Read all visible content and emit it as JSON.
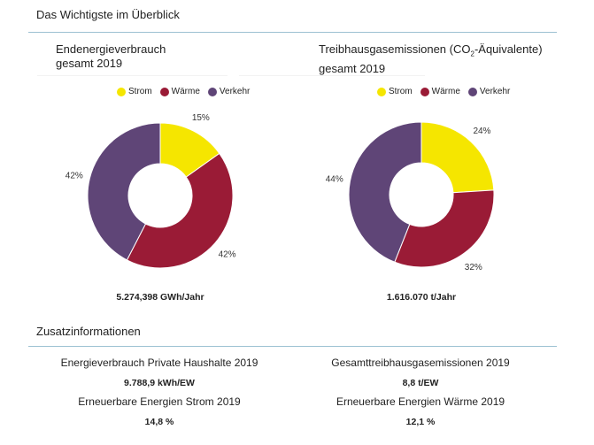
{
  "header": {
    "title": "Das Wichtigste im Überblick"
  },
  "colors": {
    "Strom": "#f5e600",
    "Wärme": "#9a1b36",
    "Verkehr": "#5f4577",
    "rule": "#9cc1d2"
  },
  "chart_data": [
    {
      "type": "pie",
      "title_line1": "Endenergieverbrauch",
      "title_line2": "gesamt 2019",
      "legend": [
        "Strom",
        "Wärme",
        "Verkehr"
      ],
      "legend_position": "top",
      "categories": [
        "Strom",
        "Wärme",
        "Verkehr"
      ],
      "values": [
        15,
        42,
        42
      ],
      "labels": [
        "15%",
        "42%",
        "42%"
      ],
      "total": "5.274,398 GWh/Jahr"
    },
    {
      "type": "pie",
      "title_line1": "Treibhausgasemissionen (CO",
      "title_sub": "2",
      "title_line1_end": "-Äquivalente)",
      "title_line2": "gesamt 2019",
      "legend": [
        "Strom",
        "Wärme",
        "Verkehr"
      ],
      "legend_position": "top",
      "categories": [
        "Strom",
        "Wärme",
        "Verkehr"
      ],
      "values": [
        24,
        32,
        44
      ],
      "labels": [
        "24%",
        "32%",
        "44%"
      ],
      "total": "1.616.070 t/Jahr"
    }
  ],
  "extra": {
    "title": "Zusatzinformationen",
    "items": [
      {
        "label": "Energieverbrauch Private Haushalte 2019",
        "value": "9.788,9 kWh/EW"
      },
      {
        "label": "Gesamttreibhausgasemissionen 2019",
        "value": "8,8 t/EW"
      },
      {
        "label": "Erneuerbare Energien Strom 2019",
        "value": "14,8 %"
      },
      {
        "label": "Erneuerbare Energien Wärme 2019",
        "value": "12,1 %"
      }
    ]
  }
}
